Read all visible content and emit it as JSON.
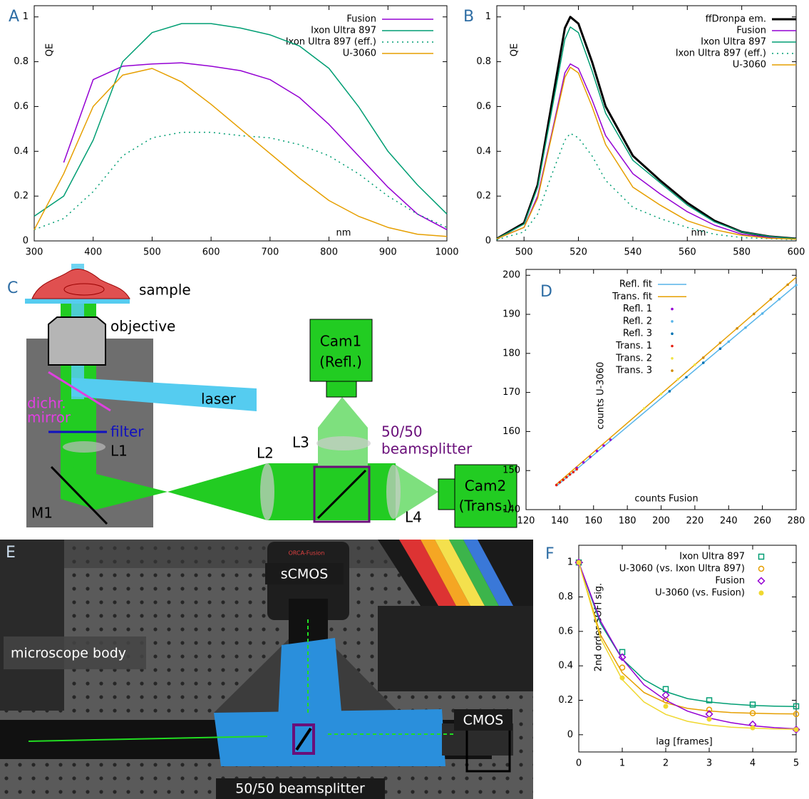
{
  "chart_data": [
    {
      "type": "line",
      "panel": "A",
      "x_label": "nm",
      "y_label": "QE",
      "legend": "upper right",
      "xlim": [
        300,
        1000
      ],
      "ylim": [
        0,
        1.05
      ],
      "xticks": [
        300,
        400,
        500,
        600,
        700,
        800,
        900,
        1000
      ],
      "yticks": [
        0,
        0.2,
        0.4,
        0.6,
        0.8,
        1
      ],
      "x": [
        300,
        350,
        400,
        450,
        500,
        550,
        600,
        650,
        700,
        750,
        800,
        850,
        900,
        950,
        1000
      ],
      "series": [
        {
          "name": "Fusion",
          "color": "#9400d3",
          "values": [
            null,
            0.35,
            0.72,
            0.78,
            0.79,
            0.795,
            0.78,
            0.76,
            0.72,
            0.64,
            0.52,
            0.38,
            0.24,
            0.12,
            0.05
          ]
        },
        {
          "name": "Ixon Ultra 897",
          "color": "#009e73",
          "values": [
            0.11,
            0.2,
            0.45,
            0.8,
            0.93,
            0.97,
            0.97,
            0.95,
            0.92,
            0.87,
            0.77,
            0.6,
            0.4,
            0.25,
            0.12
          ]
        },
        {
          "name": "Ixon Ultra 897 (eff.)",
          "color": "#009e73",
          "dash": "dotted",
          "values": [
            0.05,
            0.1,
            0.22,
            0.38,
            0.46,
            0.485,
            0.485,
            0.47,
            0.46,
            0.43,
            0.38,
            0.3,
            0.2,
            0.12,
            0.06
          ]
        },
        {
          "name": "U-3060",
          "color": "#e69f00",
          "values": [
            0.05,
            0.3,
            0.6,
            0.74,
            0.77,
            0.71,
            0.61,
            0.5,
            0.39,
            0.28,
            0.18,
            0.11,
            0.06,
            0.03,
            0.02
          ]
        }
      ]
    },
    {
      "type": "line",
      "panel": "B",
      "x_label": "nm",
      "y_label": "QE",
      "legend": "upper right",
      "xlim": [
        490,
        600
      ],
      "ylim": [
        0,
        1.05
      ],
      "xticks": [
        500,
        520,
        540,
        560,
        580,
        600
      ],
      "yticks": [
        0,
        0.2,
        0.4,
        0.6,
        0.8,
        1
      ],
      "x": [
        490,
        500,
        505,
        510,
        515,
        517,
        520,
        525,
        530,
        540,
        550,
        560,
        570,
        580,
        590,
        600
      ],
      "series": [
        {
          "name": "ffDronpa em.",
          "color": "#000000",
          "width": 3,
          "values": [
            0.01,
            0.08,
            0.25,
            0.6,
            0.95,
            1.0,
            0.97,
            0.8,
            0.6,
            0.38,
            0.27,
            0.17,
            0.09,
            0.04,
            0.02,
            0.01
          ]
        },
        {
          "name": "Fusion",
          "color": "#9400d3",
          "values": [
            0.01,
            0.06,
            0.2,
            0.47,
            0.75,
            0.79,
            0.77,
            0.63,
            0.47,
            0.3,
            0.21,
            0.13,
            0.07,
            0.03,
            0.015,
            0.01
          ]
        },
        {
          "name": "Ixon Ultra 897",
          "color": "#009e73",
          "values": [
            0.01,
            0.075,
            0.24,
            0.57,
            0.9,
            0.955,
            0.93,
            0.76,
            0.57,
            0.36,
            0.26,
            0.16,
            0.085,
            0.04,
            0.02,
            0.01
          ]
        },
        {
          "name": "Ixon Ultra 897 (eff.)",
          "color": "#009e73",
          "dash": "dotted",
          "values": [
            0.005,
            0.04,
            0.12,
            0.29,
            0.45,
            0.48,
            0.46,
            0.38,
            0.27,
            0.15,
            0.1,
            0.06,
            0.03,
            0.015,
            0.01,
            0.005
          ]
        },
        {
          "name": "U-3060",
          "color": "#e69f00",
          "values": [
            0.01,
            0.06,
            0.19,
            0.46,
            0.73,
            0.775,
            0.75,
            0.6,
            0.43,
            0.24,
            0.16,
            0.09,
            0.05,
            0.025,
            0.012,
            0.008
          ]
        }
      ]
    },
    {
      "type": "scatter",
      "panel": "D",
      "x_label": "counts Fusion",
      "y_label": "counts U-3060",
      "legend": "upper left",
      "xlim": [
        120,
        280
      ],
      "ylim": [
        140,
        201.5
      ],
      "xticks": [
        120,
        140,
        160,
        180,
        200,
        220,
        240,
        260,
        280
      ],
      "yticks": [
        140,
        150,
        160,
        170,
        180,
        190,
        200
      ],
      "series": [
        {
          "name": "Refl. fit",
          "color": "#56b4e9",
          "kind": "fit",
          "x": [
            138,
            280
          ],
          "values": [
            146,
            197.5
          ]
        },
        {
          "name": "Trans. fit",
          "color": "#e69f00",
          "kind": "fit",
          "x": [
            138,
            280
          ],
          "values": [
            146.5,
            199.5
          ]
        },
        {
          "name": "Refl. 1",
          "color": "#9400d3",
          "x": [
            150,
            154,
            158,
            162,
            166,
            170
          ],
          "values": [
            150.7,
            152.1,
            153.5,
            155,
            156.4,
            157.9
          ]
        },
        {
          "name": "Refl. 2",
          "color": "#56b4e9",
          "x": [
            240,
            250,
            260,
            270,
            280
          ],
          "values": [
            183,
            186.6,
            190.2,
            193.9,
            197.5
          ]
        },
        {
          "name": "Refl. 3",
          "color": "#0072b2",
          "x": [
            205,
            215,
            225,
            235
          ],
          "values": [
            170.3,
            173.9,
            177.6,
            181.2
          ]
        },
        {
          "name": "Trans. 1",
          "color": "#e51e10",
          "x": [
            138,
            140,
            142,
            144,
            146,
            148,
            150
          ],
          "values": [
            146.3,
            147,
            147.6,
            148.3,
            149,
            149.6,
            150.3
          ]
        },
        {
          "name": "Trans. 2",
          "color": "#f0e442",
          "x": [
            190,
            200,
            210,
            220
          ],
          "values": [
            165.9,
            169.6,
            173.4,
            177.1
          ]
        },
        {
          "name": "Trans. 3",
          "color": "#d08a00",
          "x": [
            225,
            235,
            245,
            255,
            265,
            275
          ],
          "values": [
            178.9,
            182.7,
            186.4,
            190.1,
            193.9,
            197.6
          ]
        }
      ]
    },
    {
      "type": "scatter",
      "panel": "F",
      "x_label": "lag [frames]",
      "y_label": "2nd order SOFI sig.",
      "legend": "upper right",
      "xlim": [
        0,
        5
      ],
      "ylim": [
        -0.1,
        1.1
      ],
      "xticks": [
        0,
        1,
        2,
        3,
        4,
        5
      ],
      "yticks": [
        0,
        0.2,
        0.4,
        0.6,
        0.8,
        1
      ],
      "x": [
        0,
        1,
        2,
        3,
        4,
        5
      ],
      "fit_x": [
        0,
        0.5,
        1,
        1.5,
        2,
        2.5,
        3,
        3.5,
        4,
        4.5,
        5
      ],
      "series": [
        {
          "name": "Ixon Ultra 897",
          "color": "#009e73",
          "marker": "square",
          "values": [
            1,
            0.48,
            0.265,
            0.2,
            0.175,
            0.165
          ],
          "fit": [
            1,
            0.646,
            0.44,
            0.32,
            0.25,
            0.21,
            0.19,
            0.178,
            0.17,
            0.166,
            0.164
          ]
        },
        {
          "name": "U-3060 (vs. Ixon Ultra 897)",
          "color": "#e69f00",
          "marker": "circle-open",
          "values": [
            1,
            0.39,
            0.2,
            0.145,
            0.125,
            0.12
          ],
          "fit": [
            1,
            0.58,
            0.36,
            0.245,
            0.185,
            0.153,
            0.138,
            0.129,
            0.125,
            0.122,
            0.121
          ]
        },
        {
          "name": "Fusion",
          "color": "#9400d3",
          "marker": "diamond",
          "values": [
            1,
            0.45,
            0.23,
            0.12,
            0.06,
            0.03
          ],
          "fit": [
            1,
            0.66,
            0.44,
            0.29,
            0.2,
            0.137,
            0.097,
            0.07,
            0.052,
            0.041,
            0.034
          ]
        },
        {
          "name": "U-3060 (vs. Fusion)",
          "color": "#f0d830",
          "marker": "circle",
          "values": [
            1,
            0.33,
            0.165,
            0.09,
            0.04,
            0.03
          ],
          "fit": [
            1,
            0.56,
            0.32,
            0.19,
            0.118,
            0.078,
            0.056,
            0.044,
            0.038,
            0.034,
            0.032
          ]
        }
      ]
    }
  ],
  "diagram": {
    "panel": "C",
    "labels": {
      "sample": "sample",
      "objective": "objective",
      "laser": "laser",
      "dichroic_1": "dichr.",
      "dichroic_2": "mirror",
      "filter": "filter",
      "l1": "L1",
      "m1": "M1",
      "cam1_1": "Cam1",
      "cam1_2": "(Refl.)",
      "l3": "L3",
      "splitter_1": "50/50",
      "splitter_2": "beamsplitter",
      "l2": "L2",
      "l4": "L4",
      "cam2_1": "Cam2",
      "cam2_2": "(Trans.)"
    }
  },
  "photo": {
    "panel": "E",
    "labels": {
      "scmos": "sCMOS",
      "brand": "ORCA-Fusion",
      "body": "microscope body",
      "cmos": "CMOS",
      "splitter": "50/50 beamsplitter"
    }
  }
}
